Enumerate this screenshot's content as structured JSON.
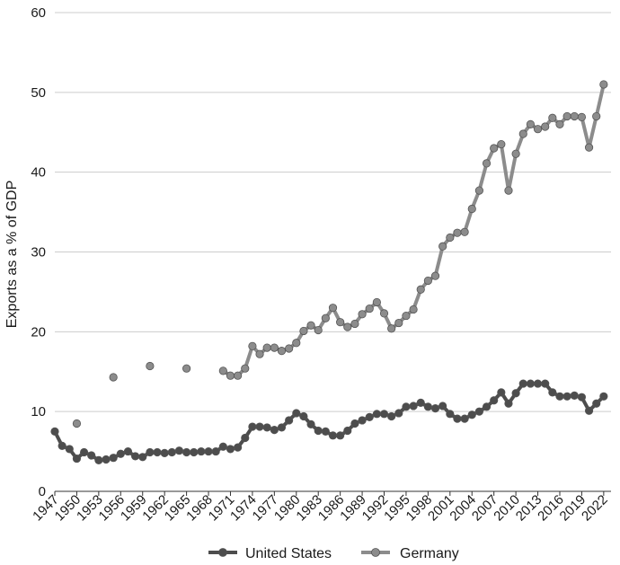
{
  "chart_data": {
    "type": "line",
    "ylabel": "Exports as a % of GDP",
    "xlabel": "",
    "ylim": [
      0,
      60
    ],
    "xlim": [
      1947,
      2023
    ],
    "y_ticks": [
      0,
      10,
      20,
      30,
      40,
      50,
      60
    ],
    "x_ticks": [
      1947,
      1950,
      1953,
      1956,
      1959,
      1962,
      1965,
      1968,
      1971,
      1974,
      1977,
      1980,
      1983,
      1986,
      1989,
      1992,
      1995,
      1998,
      2001,
      2004,
      2007,
      2010,
      2013,
      2016,
      2019,
      2022
    ],
    "grid": "horizontal",
    "legend_position": "bottom",
    "series": [
      {
        "name": "United States",
        "color": "#4d4d4d",
        "points": [
          [
            1947,
            7.5
          ],
          [
            1948,
            5.7
          ],
          [
            1949,
            5.3
          ],
          [
            1950,
            4.1
          ],
          [
            1951,
            4.9
          ],
          [
            1952,
            4.5
          ],
          [
            1953,
            3.9
          ],
          [
            1954,
            4.0
          ],
          [
            1955,
            4.2
          ],
          [
            1956,
            4.7
          ],
          [
            1957,
            5.0
          ],
          [
            1958,
            4.4
          ],
          [
            1959,
            4.3
          ],
          [
            1960,
            4.9
          ],
          [
            1961,
            4.9
          ],
          [
            1962,
            4.8
          ],
          [
            1963,
            4.9
          ],
          [
            1964,
            5.1
          ],
          [
            1965,
            4.9
          ],
          [
            1966,
            4.9
          ],
          [
            1967,
            5.0
          ],
          [
            1968,
            5.0
          ],
          [
            1969,
            5.0
          ],
          [
            1970,
            5.6
          ],
          [
            1971,
            5.3
          ],
          [
            1972,
            5.5
          ],
          [
            1973,
            6.7
          ],
          [
            1974,
            8.1
          ],
          [
            1975,
            8.1
          ],
          [
            1976,
            8.0
          ],
          [
            1977,
            7.7
          ],
          [
            1978,
            8.0
          ],
          [
            1979,
            8.9
          ],
          [
            1980,
            9.8
          ],
          [
            1981,
            9.4
          ],
          [
            1982,
            8.4
          ],
          [
            1983,
            7.6
          ],
          [
            1984,
            7.5
          ],
          [
            1985,
            7.0
          ],
          [
            1986,
            7.0
          ],
          [
            1987,
            7.6
          ],
          [
            1988,
            8.5
          ],
          [
            1989,
            8.9
          ],
          [
            1990,
            9.3
          ],
          [
            1991,
            9.7
          ],
          [
            1992,
            9.7
          ],
          [
            1993,
            9.4
          ],
          [
            1994,
            9.8
          ],
          [
            1995,
            10.6
          ],
          [
            1996,
            10.7
          ],
          [
            1997,
            11.1
          ],
          [
            1998,
            10.6
          ],
          [
            1999,
            10.4
          ],
          [
            2000,
            10.7
          ],
          [
            2001,
            9.7
          ],
          [
            2002,
            9.1
          ],
          [
            2003,
            9.1
          ],
          [
            2004,
            9.6
          ],
          [
            2005,
            10.0
          ],
          [
            2006,
            10.6
          ],
          [
            2007,
            11.4
          ],
          [
            2008,
            12.4
          ],
          [
            2009,
            11.0
          ],
          [
            2010,
            12.3
          ],
          [
            2011,
            13.5
          ],
          [
            2012,
            13.5
          ],
          [
            2013,
            13.5
          ],
          [
            2014,
            13.5
          ],
          [
            2015,
            12.4
          ],
          [
            2016,
            11.9
          ],
          [
            2017,
            11.9
          ],
          [
            2018,
            12.0
          ],
          [
            2019,
            11.8
          ],
          [
            2020,
            10.1
          ],
          [
            2021,
            11.0
          ],
          [
            2022,
            11.9
          ]
        ],
        "connect_from": 1947
      },
      {
        "name": "Germany",
        "color": "#8c8c8c",
        "points": [
          [
            1950,
            8.5
          ],
          [
            1955,
            14.3
          ],
          [
            1960,
            15.7
          ],
          [
            1965,
            15.4
          ],
          [
            1970,
            15.1
          ],
          [
            1971,
            14.5
          ],
          [
            1972,
            14.5
          ],
          [
            1973,
            15.4
          ],
          [
            1974,
            18.2
          ],
          [
            1975,
            17.2
          ],
          [
            1976,
            18.0
          ],
          [
            1977,
            18.0
          ],
          [
            1978,
            17.6
          ],
          [
            1979,
            17.9
          ],
          [
            1980,
            18.6
          ],
          [
            1981,
            20.1
          ],
          [
            1982,
            20.8
          ],
          [
            1983,
            20.2
          ],
          [
            1984,
            21.7
          ],
          [
            1985,
            23.0
          ],
          [
            1986,
            21.2
          ],
          [
            1987,
            20.6
          ],
          [
            1988,
            21.0
          ],
          [
            1989,
            22.2
          ],
          [
            1990,
            22.9
          ],
          [
            1991,
            23.7
          ],
          [
            1992,
            22.3
          ],
          [
            1993,
            20.4
          ],
          [
            1994,
            21.1
          ],
          [
            1995,
            22.0
          ],
          [
            1996,
            22.8
          ],
          [
            1997,
            25.3
          ],
          [
            1998,
            26.4
          ],
          [
            1999,
            27.0
          ],
          [
            2000,
            30.7
          ],
          [
            2001,
            31.8
          ],
          [
            2002,
            32.4
          ],
          [
            2003,
            32.5
          ],
          [
            2004,
            35.4
          ],
          [
            2005,
            37.7
          ],
          [
            2006,
            41.1
          ],
          [
            2007,
            43.0
          ],
          [
            2008,
            43.5
          ],
          [
            2009,
            37.7
          ],
          [
            2010,
            42.3
          ],
          [
            2011,
            44.8
          ],
          [
            2012,
            46.0
          ],
          [
            2013,
            45.4
          ],
          [
            2014,
            45.7
          ],
          [
            2015,
            46.8
          ],
          [
            2016,
            46.0
          ],
          [
            2017,
            47.0
          ],
          [
            2018,
            47.0
          ],
          [
            2019,
            46.9
          ],
          [
            2020,
            43.1
          ],
          [
            2021,
            47.0
          ],
          [
            2022,
            51.0
          ]
        ],
        "connect_from": 1970
      }
    ]
  }
}
